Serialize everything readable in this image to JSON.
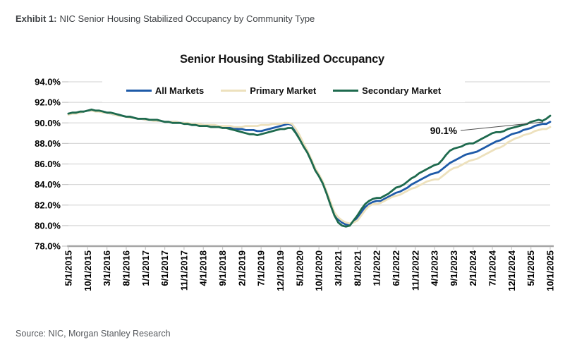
{
  "header": {
    "exhibit_label": "Exhibit 1:",
    "exhibit_title": "NIC Senior Housing Stabilized Occupancy by Community Type"
  },
  "footer": {
    "source": "Source: NIC, Morgan Stanley Research"
  },
  "chart_data": {
    "type": "line",
    "title": "Senior Housing Stabilized Occupancy",
    "x_frequency": "monthly",
    "x_start": "5/1/2015",
    "x_end": "10/1/2025",
    "points_per_tick": 5,
    "x_tick_labels": [
      "5/1/2015",
      "10/1/2015",
      "3/1/2016",
      "8/1/2016",
      "1/1/2017",
      "6/1/2017",
      "11/1/2017",
      "4/1/2018",
      "9/1/2018",
      "2/1/2019",
      "7/1/2019",
      "12/1/2019",
      "5/1/2020",
      "10/1/2020",
      "3/1/2021",
      "8/1/2021",
      "1/1/2022",
      "6/1/2022",
      "11/1/2022",
      "4/1/2023",
      "9/1/2023",
      "2/1/2024",
      "7/1/2024",
      "12/1/2024",
      "5/1/2025",
      "10/1/2025"
    ],
    "y_ticks": {
      "labels": [
        "94.0%",
        "92.0%",
        "90.0%",
        "88.0%",
        "86.0%",
        "84.0%",
        "82.0%",
        "80.0%",
        "78.0%"
      ],
      "values": [
        94,
        92,
        90,
        88,
        86,
        84,
        82,
        80,
        78
      ]
    },
    "ylim": [
      78,
      94
    ],
    "grid": "horizontal",
    "legend_position": "top",
    "annotation": {
      "text": "90.1%",
      "series": "All Markets"
    },
    "colors": {
      "gridline": "#D9D9D9",
      "axis": "#A6A6A6",
      "tick": "#C6C6C6",
      "annotation_line": "#4D4D4D"
    },
    "series": [
      {
        "name": "All Markets",
        "color": "#1E5AA8",
        "values": [
          90.9,
          90.9,
          91.0,
          91.0,
          91.1,
          91.2,
          91.2,
          91.2,
          91.1,
          91.1,
          91.0,
          90.9,
          90.8,
          90.8,
          90.7,
          90.6,
          90.6,
          90.5,
          90.4,
          90.4,
          90.3,
          90.3,
          90.3,
          90.2,
          90.2,
          90.1,
          90.1,
          90.1,
          90.1,
          90.0,
          90.0,
          89.9,
          89.8,
          89.8,
          89.8,
          89.8,
          89.7,
          89.7,
          89.7,
          89.6,
          89.6,
          89.6,
          89.5,
          89.5,
          89.4,
          89.4,
          89.3,
          89.3,
          89.3,
          89.2,
          89.2,
          89.3,
          89.4,
          89.5,
          89.6,
          89.7,
          89.8,
          89.9,
          89.8,
          89.3,
          88.6,
          87.8,
          87.2,
          86.4,
          85.5,
          84.9,
          84.2,
          83.2,
          82.2,
          81.2,
          80.6,
          80.3,
          80.1,
          80.1,
          80.4,
          80.8,
          81.3,
          81.8,
          82.1,
          82.3,
          82.4,
          82.4,
          82.6,
          82.8,
          83.0,
          83.2,
          83.3,
          83.5,
          83.7,
          84.0,
          84.2,
          84.4,
          84.6,
          84.8,
          85.0,
          85.1,
          85.2,
          85.5,
          85.8,
          86.1,
          86.3,
          86.5,
          86.7,
          86.9,
          87.0,
          87.1,
          87.2,
          87.4,
          87.6,
          87.8,
          88.0,
          88.2,
          88.3,
          88.5,
          88.7,
          88.9,
          89.0,
          89.1,
          89.3,
          89.4,
          89.5,
          89.7,
          89.8,
          89.9,
          89.9,
          90.1
        ]
      },
      {
        "name": "Primary Market",
        "color": "#EDE1BD",
        "values": [
          90.8,
          90.9,
          90.9,
          91.0,
          91.1,
          91.2,
          91.2,
          91.1,
          91.1,
          91.0,
          91.0,
          90.9,
          90.8,
          90.7,
          90.7,
          90.6,
          90.5,
          90.5,
          90.4,
          90.4,
          90.3,
          90.3,
          90.2,
          90.2,
          90.2,
          90.1,
          90.1,
          90.1,
          90.1,
          90.0,
          90.0,
          90.0,
          89.9,
          89.9,
          89.9,
          89.8,
          89.8,
          89.8,
          89.8,
          89.7,
          89.7,
          89.7,
          89.7,
          89.6,
          89.6,
          89.6,
          89.7,
          89.7,
          89.7,
          89.7,
          89.8,
          89.8,
          89.8,
          89.9,
          89.9,
          89.9,
          90.0,
          90.0,
          89.9,
          89.4,
          88.8,
          88.0,
          87.3,
          86.5,
          85.6,
          85.0,
          84.3,
          83.3,
          82.3,
          81.3,
          80.8,
          80.5,
          80.3,
          80.2,
          80.3,
          80.5,
          81.0,
          81.5,
          81.9,
          82.1,
          82.1,
          82.2,
          82.4,
          82.6,
          82.8,
          82.9,
          83.0,
          83.2,
          83.4,
          83.6,
          83.7,
          83.9,
          84.1,
          84.3,
          84.4,
          84.5,
          84.5,
          84.8,
          85.1,
          85.4,
          85.6,
          85.7,
          85.9,
          86.1,
          86.3,
          86.4,
          86.5,
          86.7,
          86.9,
          87.1,
          87.3,
          87.5,
          87.6,
          87.8,
          88.1,
          88.3,
          88.5,
          88.6,
          88.8,
          88.9,
          89.0,
          89.2,
          89.3,
          89.4,
          89.4,
          89.6
        ]
      },
      {
        "name": "Secondary Market",
        "color": "#1E6A4E",
        "values": [
          90.9,
          91.0,
          91.0,
          91.1,
          91.1,
          91.2,
          91.3,
          91.2,
          91.2,
          91.1,
          91.0,
          91.0,
          90.9,
          90.8,
          90.7,
          90.6,
          90.6,
          90.5,
          90.4,
          90.4,
          90.4,
          90.3,
          90.3,
          90.3,
          90.2,
          90.1,
          90.1,
          90.0,
          90.0,
          90.0,
          89.9,
          89.9,
          89.8,
          89.8,
          89.7,
          89.7,
          89.7,
          89.6,
          89.6,
          89.6,
          89.5,
          89.5,
          89.4,
          89.3,
          89.2,
          89.1,
          89.0,
          88.9,
          88.9,
          88.8,
          88.9,
          89.0,
          89.1,
          89.2,
          89.3,
          89.4,
          89.4,
          89.5,
          89.5,
          89.0,
          88.4,
          87.7,
          87.1,
          86.3,
          85.4,
          84.8,
          84.1,
          83.1,
          82.0,
          81.0,
          80.3,
          80.0,
          79.9,
          80.0,
          80.5,
          81.0,
          81.6,
          82.1,
          82.4,
          82.6,
          82.7,
          82.7,
          82.9,
          83.1,
          83.4,
          83.7,
          83.8,
          84.0,
          84.3,
          84.6,
          84.8,
          85.1,
          85.3,
          85.5,
          85.7,
          85.9,
          86.0,
          86.4,
          86.9,
          87.3,
          87.5,
          87.6,
          87.7,
          87.9,
          88.0,
          88.0,
          88.2,
          88.4,
          88.6,
          88.8,
          89.0,
          89.1,
          89.1,
          89.2,
          89.4,
          89.5,
          89.6,
          89.7,
          89.8,
          89.9,
          90.1,
          90.2,
          90.3,
          90.2,
          90.4,
          90.7
        ]
      }
    ]
  }
}
